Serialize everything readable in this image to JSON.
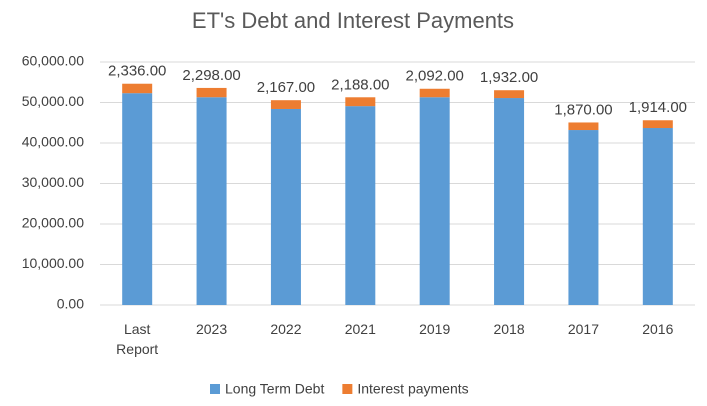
{
  "chart_data": {
    "type": "stacked_bar",
    "title": "ET's Debt and Interest Payments",
    "categories": [
      "Last Report",
      "2023",
      "2022",
      "2021",
      "2019",
      "2018",
      "2017",
      "2016"
    ],
    "series": [
      {
        "name": "Long Term Debt",
        "color": "#5b9bd5",
        "values": [
          52300,
          51300,
          48400,
          49100,
          51300,
          51100,
          43200,
          43700
        ]
      },
      {
        "name": "Interest payments",
        "color": "#ed7d31",
        "values": [
          2336,
          2298,
          2167,
          2188,
          2092,
          1932,
          1870,
          1914
        ],
        "value_labels": [
          "2,336.00",
          "2,298.00",
          "2,167.00",
          "2,188.00",
          "2,092.00",
          "1,932.00",
          "1,870.00",
          "1,914.00"
        ]
      }
    ],
    "ylim": [
      0,
      60000
    ],
    "yticks": [
      {
        "value": 0,
        "label": "0.00"
      },
      {
        "value": 10000,
        "label": "10,000.00"
      },
      {
        "value": 20000,
        "label": "20,000.00"
      },
      {
        "value": 30000,
        "label": "30,000.00"
      },
      {
        "value": 40000,
        "label": "40,000.00"
      },
      {
        "value": 50000,
        "label": "50,000.00"
      },
      {
        "value": 60000,
        "label": "60,000.00"
      }
    ],
    "grid": true,
    "legend": "bottom"
  }
}
